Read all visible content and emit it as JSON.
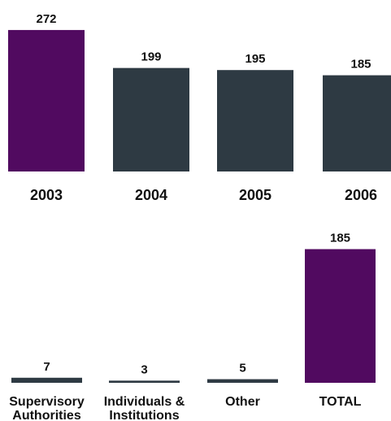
{
  "chart_data": [
    {
      "type": "bar",
      "categories": [
        "2003",
        "2004",
        "2005",
        "2006"
      ],
      "values": [
        272,
        199,
        195,
        185
      ],
      "colors": [
        "#510a60",
        "#2e3a43",
        "#2e3a43",
        "#2e3a43"
      ],
      "title": "",
      "xlabel": "",
      "ylabel": "",
      "grid": false,
      "legend": "none"
    },
    {
      "type": "bar",
      "categories": [
        [
          "Supervisory",
          "Authorities"
        ],
        [
          "Individuals &",
          "Institutions"
        ],
        [
          "Other"
        ],
        [
          "TOTAL"
        ]
      ],
      "values": [
        7,
        3,
        5,
        185
      ],
      "colors": [
        "#2e3a43",
        "#2e3a43",
        "#2e3a43",
        "#510a60"
      ],
      "title": "",
      "xlabel": "",
      "ylabel": "",
      "grid": false,
      "legend": "none"
    }
  ]
}
